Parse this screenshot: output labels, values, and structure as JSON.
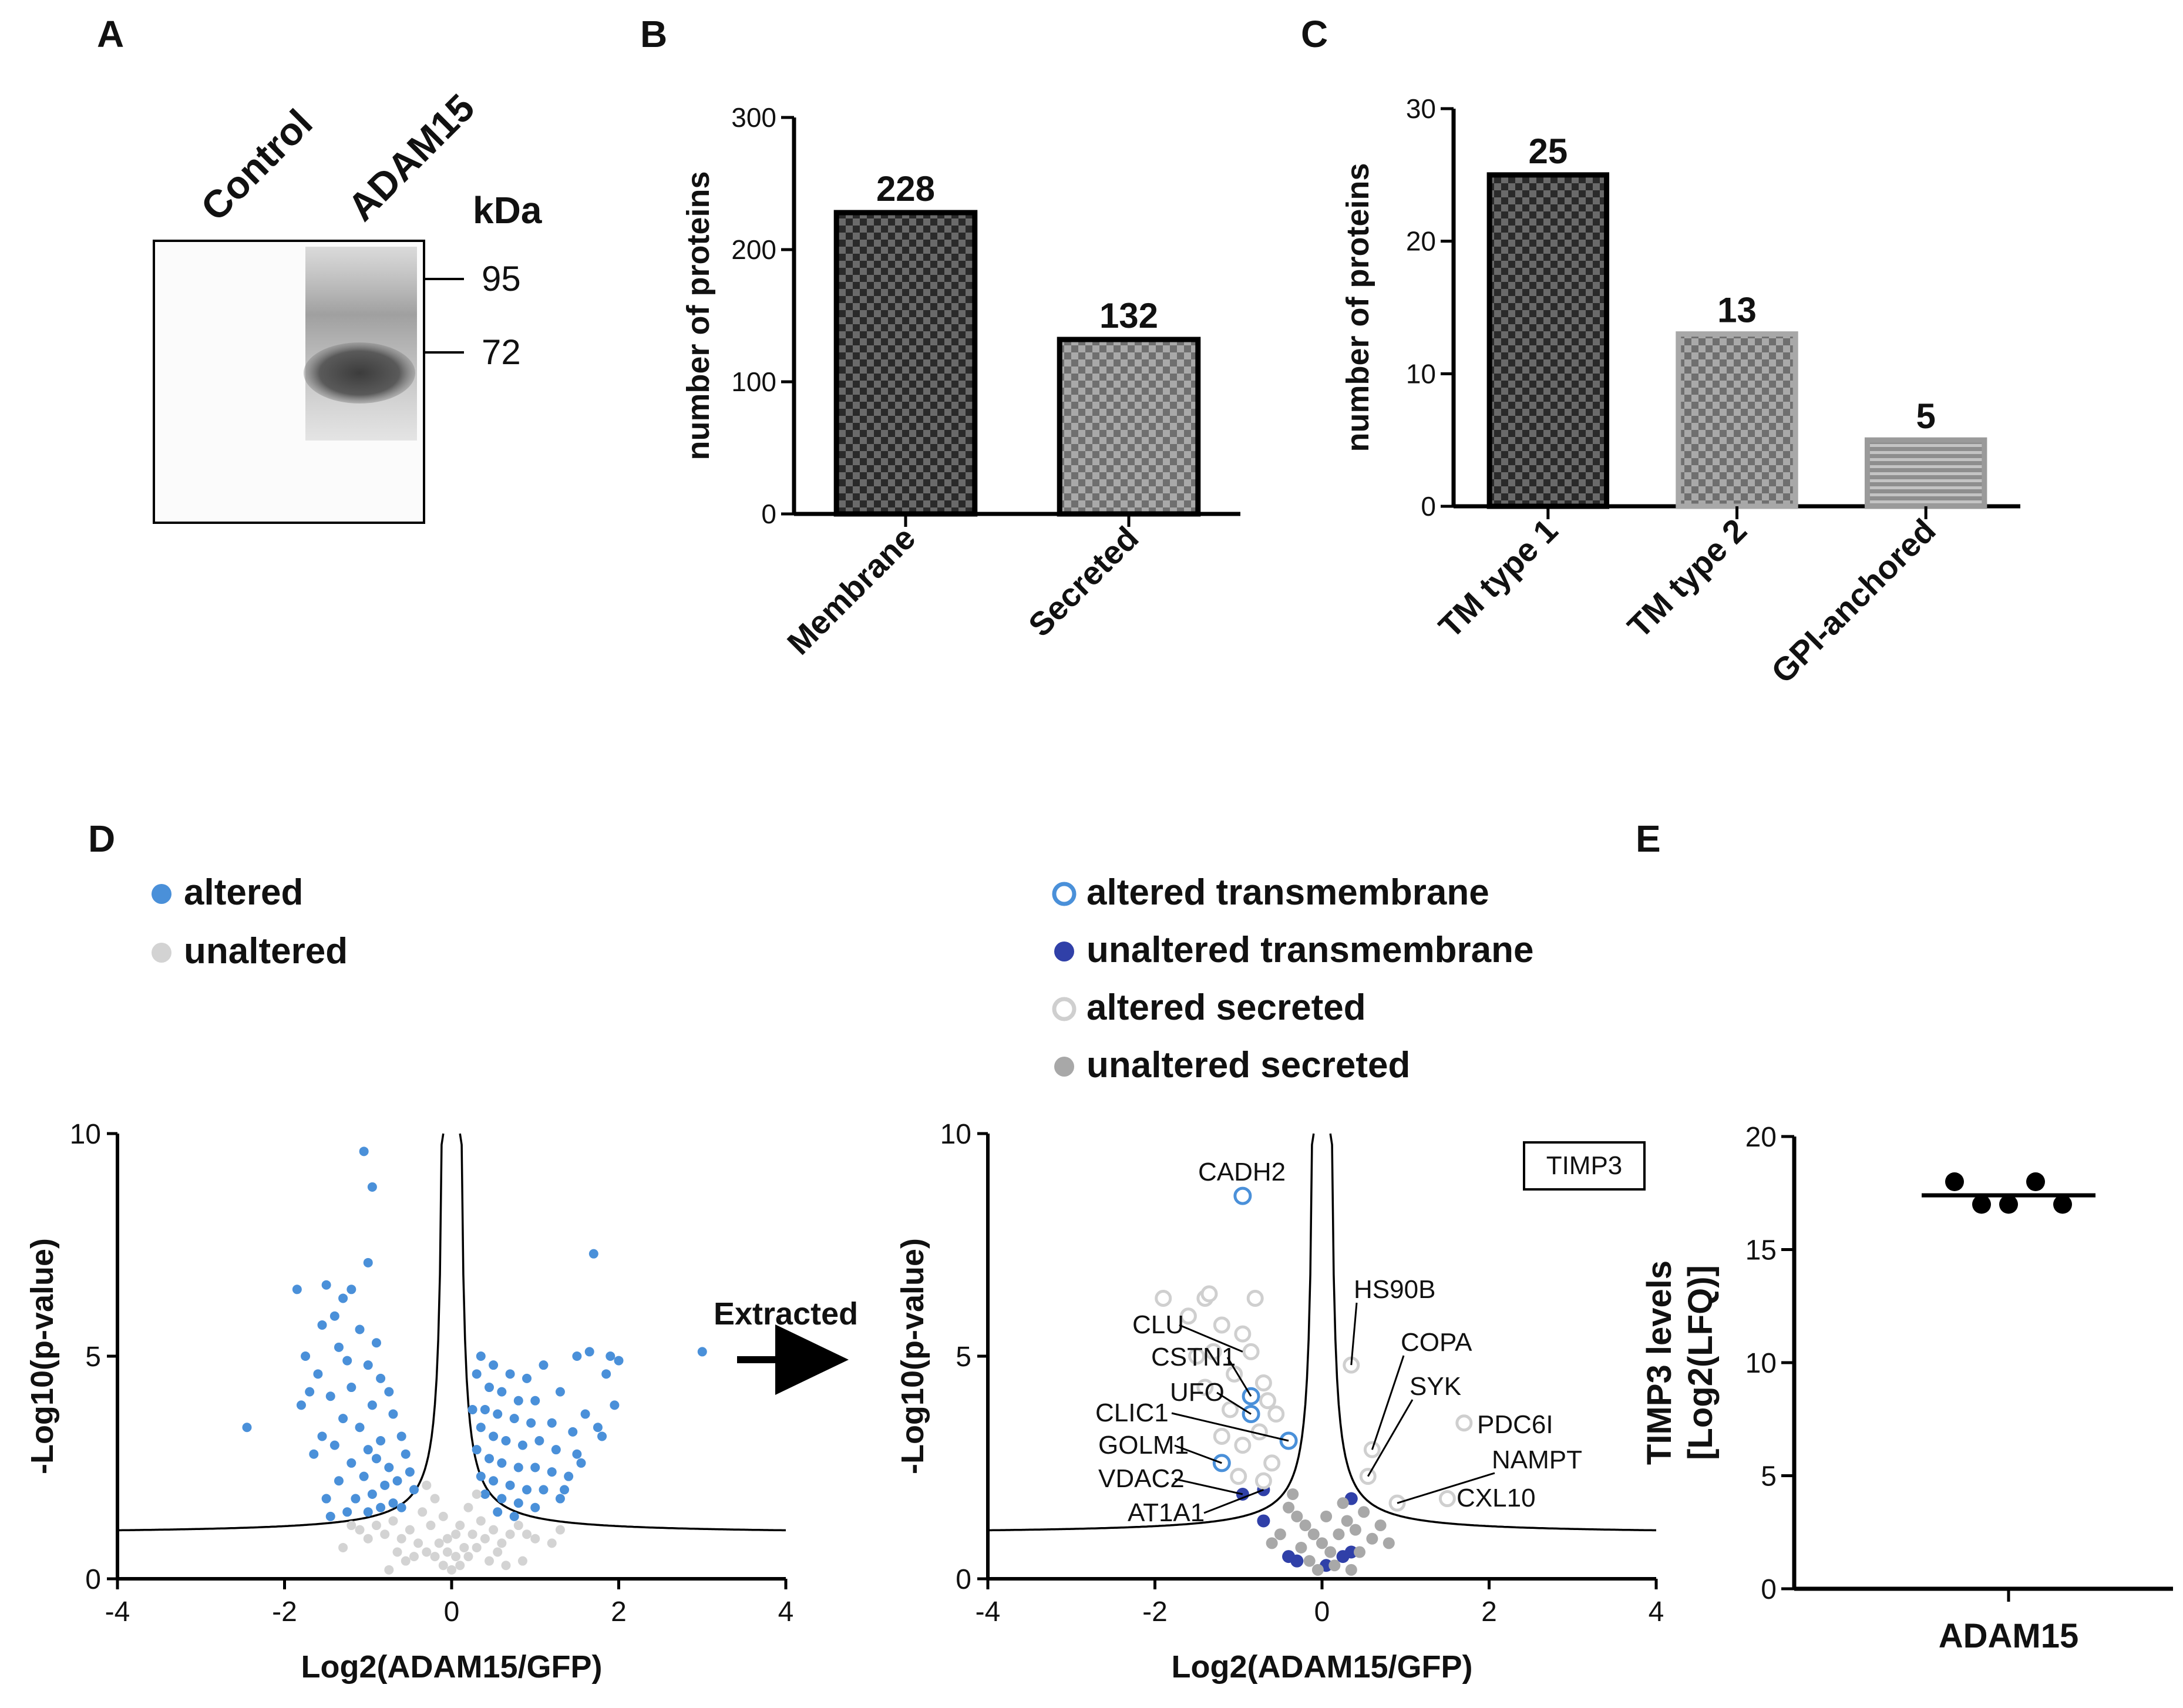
{
  "colors": {
    "altered": "#4a90d9",
    "unaltered": "#d3d3d3",
    "altered_transmembrane": "#4a90d9",
    "unaltered_transmembrane": "#3040a8",
    "altered_secreted": "#cfcfcf",
    "unaltered_secreted": "#a8a8a8",
    "bar_dark": "#3a3a3a",
    "bar_mid": "#8a8a8a",
    "bar_light": "#a5a5a5"
  },
  "panels": {
    "A": {
      "letter": "A",
      "lanes": [
        "Control",
        "ADAM15"
      ],
      "unit": "kDa",
      "markers": [
        "95",
        "72"
      ]
    },
    "B": {
      "letter": "B"
    },
    "C": {
      "letter": "C"
    },
    "D": {
      "letter": "D",
      "arrow_label": "Extracted",
      "legend_left": [
        {
          "label": "altered",
          "style": "filled",
          "color": "#4a90d9"
        },
        {
          "label": "unaltered",
          "style": "filled",
          "color": "#d3d3d3"
        }
      ],
      "legend_right": [
        {
          "label": "altered transmembrane",
          "style": "open",
          "color": "#4a90d9"
        },
        {
          "label": "unaltered transmembrane",
          "style": "filled",
          "color": "#3040a8"
        },
        {
          "label": "altered secreted",
          "style": "open",
          "color": "#cfcfcf"
        },
        {
          "label": "unaltered secreted",
          "style": "filled",
          "color": "#a8a8a8"
        }
      ],
      "box_label": "TIMP3"
    },
    "E": {
      "letter": "E"
    }
  },
  "chart_data": [
    {
      "id": "B",
      "type": "bar",
      "categories": [
        "Membrane",
        "Secreted"
      ],
      "values": [
        228,
        132
      ],
      "data_labels": [
        "228",
        "132"
      ],
      "ylabel": "number of proteins",
      "ylim": [
        0,
        300
      ],
      "yticks": [
        0,
        100,
        200,
        300
      ]
    },
    {
      "id": "C",
      "type": "bar",
      "categories": [
        "TM type 1",
        "TM type 2",
        "GPI-anchored"
      ],
      "values": [
        25,
        13,
        5
      ],
      "data_labels": [
        "25",
        "13",
        "5"
      ],
      "ylabel": "number of proteins",
      "ylim": [
        0,
        30
      ],
      "yticks": [
        0,
        10,
        20,
        30
      ]
    },
    {
      "id": "D-left",
      "type": "scatter",
      "xlabel": "Log2(ADAM15/GFP)",
      "ylabel": "-Log10(p-value)",
      "xlim": [
        -4,
        4
      ],
      "ylim": [
        0,
        10
      ],
      "xticks": [
        -4,
        -2,
        0,
        2,
        4
      ],
      "yticks": [
        0,
        5,
        10
      ],
      "series": [
        {
          "name": "altered",
          "points": [
            [
              -1.05,
              9.6
            ],
            [
              -0.95,
              8.8
            ],
            [
              -1.0,
              7.1
            ],
            [
              -1.85,
              6.5
            ],
            [
              -1.5,
              6.6
            ],
            [
              -1.3,
              6.3
            ],
            [
              -1.2,
              6.5
            ],
            [
              -1.55,
              5.7
            ],
            [
              -1.75,
              5.0
            ],
            [
              -1.4,
              5.9
            ],
            [
              -1.1,
              5.6
            ],
            [
              -1.6,
              4.6
            ],
            [
              -1.35,
              5.2
            ],
            [
              -0.9,
              5.3
            ],
            [
              -1.25,
              4.9
            ],
            [
              -0.85,
              4.5
            ],
            [
              -1.7,
              4.2
            ],
            [
              -1.2,
              4.3
            ],
            [
              -1.45,
              4.1
            ],
            [
              -1.0,
              4.8
            ],
            [
              -0.75,
              4.2
            ],
            [
              -1.3,
              3.6
            ],
            [
              -0.95,
              3.9
            ],
            [
              -1.55,
              3.2
            ],
            [
              -1.1,
              3.4
            ],
            [
              -0.7,
              3.7
            ],
            [
              -0.85,
              3.1
            ],
            [
              -1.4,
              3.0
            ],
            [
              -1.0,
              2.9
            ],
            [
              -1.2,
              2.6
            ],
            [
              -0.6,
              3.2
            ],
            [
              -0.9,
              2.7
            ],
            [
              -1.35,
              2.2
            ],
            [
              -1.05,
              2.3
            ],
            [
              -0.75,
              2.5
            ],
            [
              -0.55,
              2.8
            ],
            [
              -0.8,
              2.1
            ],
            [
              -1.15,
              1.8
            ],
            [
              -0.65,
              2.2
            ],
            [
              -0.95,
              1.9
            ],
            [
              -0.5,
              2.4
            ],
            [
              -1.45,
              1.4
            ],
            [
              -0.7,
              1.7
            ],
            [
              -0.45,
              2.0
            ],
            [
              -1.25,
              1.5
            ],
            [
              -2.45,
              3.4
            ],
            [
              -0.6,
              1.6
            ],
            [
              -1.0,
              1.5
            ],
            [
              -0.85,
              1.6
            ],
            [
              -1.5,
              1.8
            ],
            [
              -1.65,
              2.8
            ],
            [
              -1.8,
              3.9
            ],
            [
              0.35,
              5.0
            ],
            [
              0.5,
              4.8
            ],
            [
              0.7,
              4.6
            ],
            [
              0.9,
              4.5
            ],
            [
              1.1,
              4.8
            ],
            [
              0.45,
              4.3
            ],
            [
              0.6,
              4.2
            ],
            [
              0.8,
              4.0
            ],
            [
              1.0,
              4.0
            ],
            [
              1.3,
              4.2
            ],
            [
              0.4,
              3.8
            ],
            [
              0.55,
              3.7
            ],
            [
              0.75,
              3.6
            ],
            [
              0.95,
              3.5
            ],
            [
              1.2,
              3.5
            ],
            [
              1.45,
              3.3
            ],
            [
              0.35,
              3.4
            ],
            [
              0.5,
              3.2
            ],
            [
              0.65,
              3.1
            ],
            [
              0.85,
              3.0
            ],
            [
              1.05,
              3.1
            ],
            [
              1.25,
              2.9
            ],
            [
              1.5,
              2.8
            ],
            [
              0.3,
              2.9
            ],
            [
              0.45,
              2.7
            ],
            [
              0.6,
              2.6
            ],
            [
              0.8,
              2.5
            ],
            [
              1.0,
              2.5
            ],
            [
              1.2,
              2.4
            ],
            [
              1.4,
              2.3
            ],
            [
              0.35,
              2.3
            ],
            [
              0.5,
              2.2
            ],
            [
              0.7,
              2.1
            ],
            [
              0.9,
              2.0
            ],
            [
              1.1,
              2.0
            ],
            [
              1.3,
              1.8
            ],
            [
              0.4,
              1.9
            ],
            [
              0.6,
              1.8
            ],
            [
              0.8,
              1.7
            ],
            [
              1.0,
              1.6
            ],
            [
              0.55,
              1.5
            ],
            [
              0.75,
              1.4
            ],
            [
              1.6,
              3.7
            ],
            [
              1.8,
              3.2
            ],
            [
              1.7,
              7.3
            ],
            [
              1.5,
              5.0
            ],
            [
              1.65,
              5.1
            ],
            [
              1.9,
              5.0
            ],
            [
              2.0,
              4.9
            ],
            [
              1.85,
              4.6
            ],
            [
              1.95,
              3.9
            ],
            [
              1.75,
              3.4
            ],
            [
              3.0,
              5.1
            ],
            [
              1.35,
              2.0
            ],
            [
              1.55,
              2.6
            ],
            [
              0.3,
              4.6
            ],
            [
              0.25,
              3.8
            ]
          ]
        },
        {
          "name": "unaltered",
          "points": [
            [
              -0.9,
              1.2
            ],
            [
              -0.8,
              1.0
            ],
            [
              -0.7,
              1.3
            ],
            [
              -0.6,
              0.9
            ],
            [
              -0.5,
              1.1
            ],
            [
              -0.4,
              0.8
            ],
            [
              -0.3,
              0.6
            ],
            [
              -0.2,
              0.5
            ],
            [
              -0.1,
              0.3
            ],
            [
              0.0,
              0.2
            ],
            [
              0.1,
              0.3
            ],
            [
              0.2,
              0.5
            ],
            [
              0.3,
              0.7
            ],
            [
              0.4,
              0.9
            ],
            [
              0.5,
              1.1
            ],
            [
              0.6,
              0.8
            ],
            [
              0.7,
              1.0
            ],
            [
              0.8,
              1.2
            ],
            [
              0.9,
              1.0
            ],
            [
              1.0,
              0.9
            ],
            [
              -1.0,
              0.9
            ],
            [
              -1.1,
              1.1
            ],
            [
              -0.35,
              1.5
            ],
            [
              -0.25,
              1.2
            ],
            [
              -0.15,
              0.8
            ],
            [
              -0.05,
              0.6
            ],
            [
              0.05,
              0.5
            ],
            [
              0.15,
              0.7
            ],
            [
              0.25,
              1.0
            ],
            [
              0.35,
              1.3
            ],
            [
              -0.45,
              0.5
            ],
            [
              -0.55,
              0.4
            ],
            [
              0.45,
              0.4
            ],
            [
              0.55,
              0.6
            ],
            [
              -0.2,
              1.8
            ],
            [
              0.2,
              1.6
            ],
            [
              -0.1,
              1.4
            ],
            [
              0.1,
              1.2
            ],
            [
              -0.3,
              2.1
            ],
            [
              0.3,
              1.9
            ],
            [
              -1.3,
              0.7
            ],
            [
              1.2,
              0.8
            ],
            [
              -0.65,
              0.6
            ],
            [
              0.65,
              0.3
            ],
            [
              -0.05,
              0.9
            ],
            [
              0.05,
              1.0
            ],
            [
              -0.75,
              0.2
            ],
            [
              0.85,
              0.4
            ],
            [
              1.3,
              1.1
            ],
            [
              -1.2,
              1.2
            ]
          ]
        }
      ]
    },
    {
      "id": "D-right",
      "type": "scatter",
      "xlabel": "Log2(ADAM15/GFP)",
      "ylabel": "-Log10(p-value)",
      "xlim": [
        -4,
        4
      ],
      "ylim": [
        0,
        10
      ],
      "xticks": [
        -4,
        -2,
        0,
        2,
        4
      ],
      "yticks": [
        0,
        5,
        10
      ],
      "series": [
        {
          "name": "altered transmembrane",
          "points": [
            [
              -0.95,
              8.6
            ],
            [
              -0.85,
              4.1
            ],
            [
              -0.85,
              3.7
            ],
            [
              -0.4,
              3.1
            ],
            [
              -1.2,
              2.6
            ]
          ]
        },
        {
          "name": "unaltered transmembrane",
          "points": [
            [
              -0.7,
              2.0
            ],
            [
              -0.95,
              1.9
            ],
            [
              -0.7,
              1.3
            ],
            [
              0.35,
              1.8
            ],
            [
              0.25,
              0.5
            ],
            [
              0.35,
              0.6
            ],
            [
              -0.3,
              0.4
            ],
            [
              -0.4,
              0.5
            ],
            [
              0.05,
              0.3
            ]
          ]
        },
        {
          "name": "altered secreted",
          "points": [
            [
              -1.9,
              6.3
            ],
            [
              -1.4,
              6.3
            ],
            [
              -1.35,
              6.4
            ],
            [
              -0.8,
              6.3
            ],
            [
              -1.6,
              5.9
            ],
            [
              -1.2,
              5.7
            ],
            [
              -1.3,
              5.1
            ],
            [
              -0.95,
              5.5
            ],
            [
              -1.5,
              5.0
            ],
            [
              -0.85,
              5.1
            ],
            [
              -1.05,
              4.6
            ],
            [
              -1.4,
              4.3
            ],
            [
              -0.7,
              4.4
            ],
            [
              -0.65,
              4.0
            ],
            [
              -1.1,
              3.8
            ],
            [
              -0.55,
              3.7
            ],
            [
              -1.2,
              3.2
            ],
            [
              -0.75,
              3.3
            ],
            [
              -0.95,
              3.0
            ],
            [
              -0.6,
              2.6
            ],
            [
              -1.0,
              2.3
            ],
            [
              -0.7,
              2.2
            ],
            [
              0.35,
              4.8
            ],
            [
              0.6,
              2.9
            ],
            [
              0.55,
              2.3
            ],
            [
              0.9,
              1.7
            ],
            [
              1.7,
              3.5
            ],
            [
              1.5,
              1.8
            ]
          ]
        },
        {
          "name": "unaltered secreted",
          "points": [
            [
              -0.4,
              1.6
            ],
            [
              -0.3,
              1.4
            ],
            [
              -0.2,
              1.2
            ],
            [
              -0.1,
              1.0
            ],
            [
              0.0,
              0.8
            ],
            [
              0.1,
              0.6
            ],
            [
              0.2,
              1.0
            ],
            [
              0.3,
              1.3
            ],
            [
              0.4,
              1.1
            ],
            [
              0.5,
              1.5
            ],
            [
              0.6,
              0.9
            ],
            [
              0.7,
              1.2
            ],
            [
              -0.5,
              1.0
            ],
            [
              -0.6,
              0.8
            ],
            [
              -0.15,
              0.4
            ],
            [
              0.15,
              0.3
            ],
            [
              0.25,
              1.7
            ],
            [
              -0.25,
              0.7
            ],
            [
              0.45,
              0.6
            ],
            [
              0.8,
              0.8
            ],
            [
              -0.05,
              0.2
            ],
            [
              0.05,
              1.4
            ],
            [
              0.35,
              0.2
            ],
            [
              -0.35,
              1.9
            ]
          ]
        }
      ],
      "annotations": [
        "CADH2",
        "CLU",
        "CSTN1",
        "UFO",
        "CLIC1",
        "GOLM1",
        "VDAC2",
        "AT1A1",
        "HS90B",
        "COPA",
        "SYK",
        "PDC6I",
        "NAMPT",
        "CXL10"
      ]
    },
    {
      "id": "E",
      "type": "scatter",
      "categories": [
        "ADAM15"
      ],
      "ylabel": "TIMP3 levels\n[Log2(LFQ)]",
      "ylabel_lines": [
        "TIMP3 levels",
        "[Log2(LFQ)]"
      ],
      "ylim": [
        0,
        20
      ],
      "yticks": [
        0,
        5,
        10,
        15,
        20
      ],
      "values": [
        18.0,
        17.0,
        17.0,
        18.0,
        17.0
      ],
      "mean": 17.4
    }
  ]
}
